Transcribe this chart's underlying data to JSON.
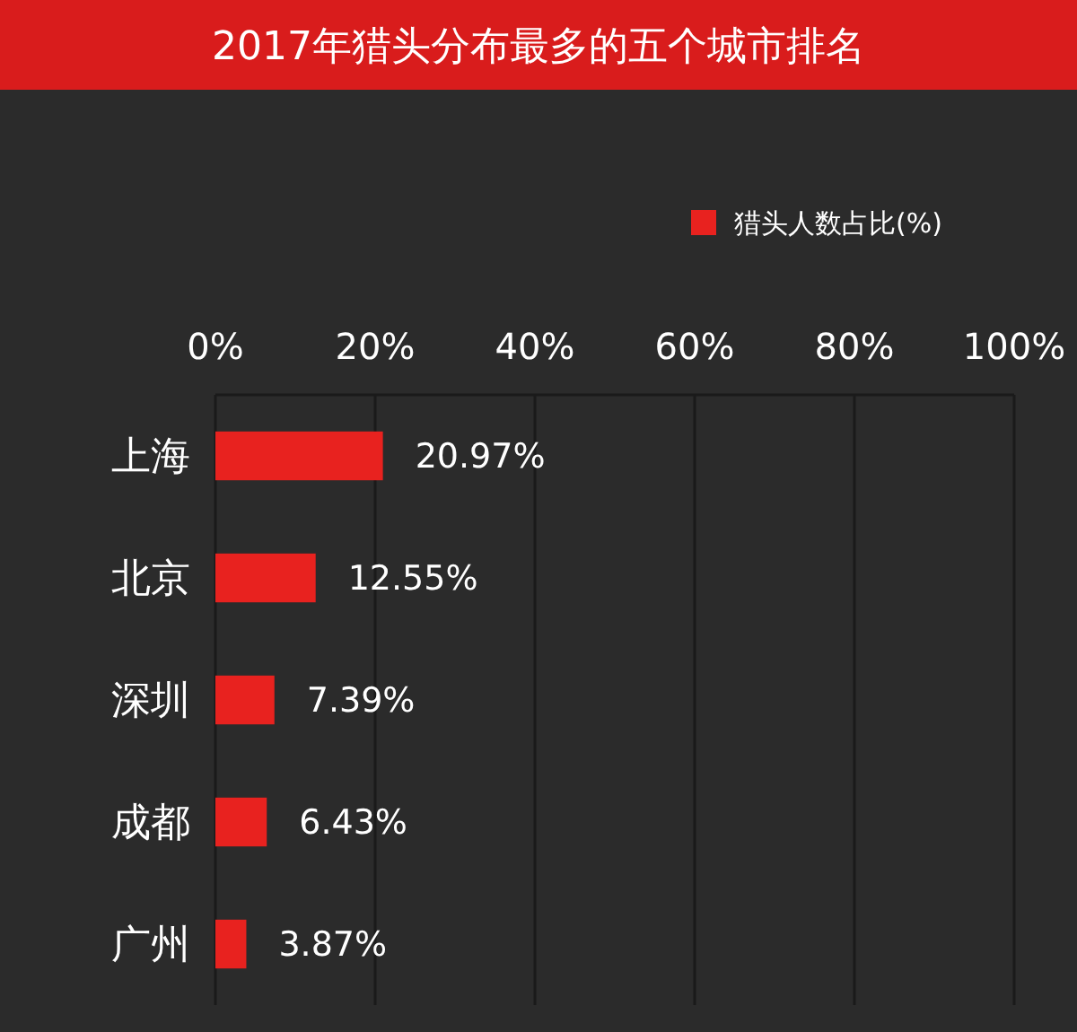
{
  "chart_data": {
    "type": "bar",
    "orientation": "horizontal",
    "title": "2017年猎头分布最多的五个城市排名",
    "categories": [
      "上海",
      "北京",
      "深圳",
      "成都",
      "广州"
    ],
    "series": [
      {
        "name": "猎头人数占比(%)",
        "color": "#e8221f",
        "values": [
          20.97,
          12.55,
          7.39,
          6.43,
          3.87
        ]
      }
    ],
    "value_labels": [
      "20.97%",
      "12.55%",
      "7.39%",
      "6.43%",
      "3.87%"
    ],
    "xlim": [
      0,
      100
    ],
    "xticks": [
      {
        "value": 0,
        "label": "0%"
      },
      {
        "value": 20,
        "label": "20%"
      },
      {
        "value": 40,
        "label": "40%"
      },
      {
        "value": 60,
        "label": "60%"
      },
      {
        "value": 80,
        "label": "80%"
      },
      {
        "value": 100,
        "label": "100%"
      }
    ],
    "grid": "x",
    "legend": "top right"
  }
}
